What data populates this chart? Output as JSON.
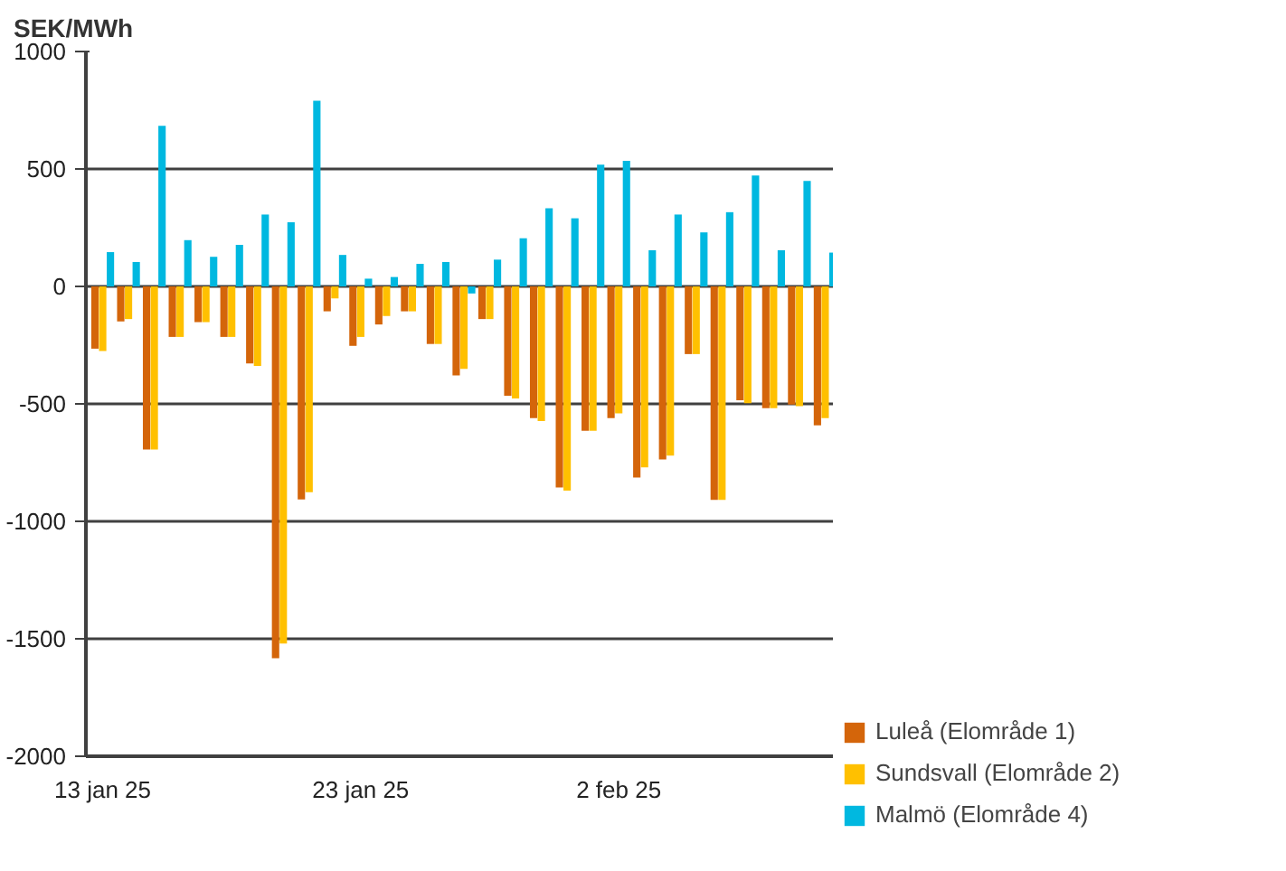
{
  "chart_data": {
    "type": "bar",
    "ylabel": "SEK/MWh",
    "categories": [
      "13 jan 25",
      null,
      null,
      null,
      null,
      null,
      null,
      null,
      null,
      null,
      "23 jan 25",
      null,
      null,
      null,
      null,
      null,
      null,
      null,
      null,
      null,
      "2 feb 25",
      null,
      null,
      null,
      null,
      null,
      null,
      null,
      null
    ],
    "series": [
      {
        "name": "Luleå (Elområde 1)",
        "color": "#d4650a",
        "values": [
          -265,
          -149,
          -694,
          -215,
          -152,
          -215,
          -328,
          -1583,
          -907,
          -106,
          -253,
          -162,
          -106,
          -245,
          -379,
          -139,
          -465,
          -561,
          -856,
          -614,
          -561,
          -813,
          -737,
          -288,
          -909,
          -485,
          -518,
          -503,
          -591
        ]
      },
      {
        "name": "Sundsvall (Elområde 2)",
        "color": "#ffc000",
        "values": [
          -275,
          -139,
          -694,
          -215,
          -152,
          -215,
          -338,
          -1520,
          -876,
          -51,
          -215,
          -126,
          -106,
          -245,
          -351,
          -139,
          -477,
          -573,
          -869,
          -614,
          -540,
          -770,
          -720,
          -288,
          -909,
          -497,
          -518,
          -510,
          -561
        ]
      },
      {
        "name": "Malmö (Elområde 4)",
        "color": "#00b8e0",
        "values": [
          146,
          104,
          684,
          197,
          126,
          177,
          306,
          273,
          790,
          134,
          33,
          40,
          96,
          104,
          -30,
          114,
          205,
          333,
          290,
          518,
          535,
          154,
          306,
          230,
          316,
          472,
          154,
          449,
          144
        ]
      }
    ],
    "ylim": [
      -2000,
      1000
    ],
    "yticks": [
      -2000,
      -1500,
      -1000,
      -500,
      0,
      500,
      1000
    ],
    "grid": "y",
    "legend": "right"
  }
}
